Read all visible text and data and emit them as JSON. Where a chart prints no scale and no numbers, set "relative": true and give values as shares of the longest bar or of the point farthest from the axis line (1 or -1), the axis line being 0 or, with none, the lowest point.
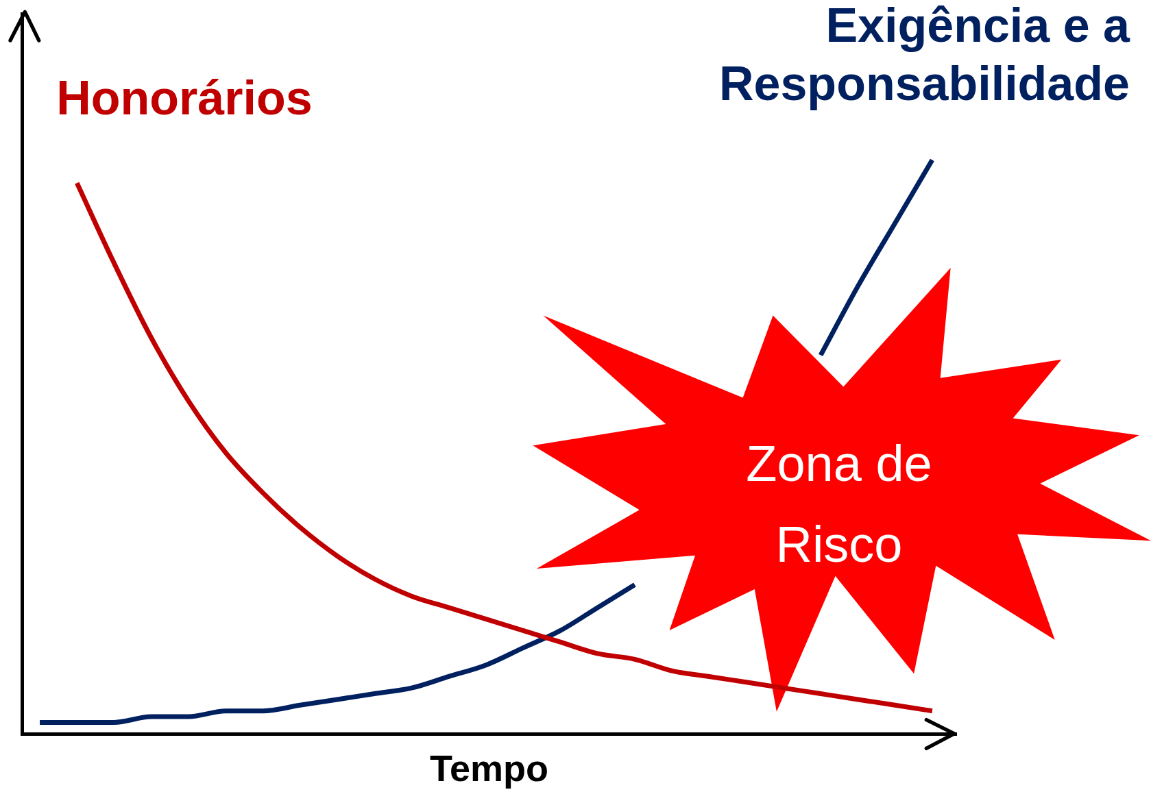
{
  "chart_data": {
    "type": "line",
    "relative": true,
    "legend": false,
    "marker": "none",
    "xlabel": "Tempo",
    "annotations": [
      "Zona de Risco"
    ],
    "categories": [
      null,
      null,
      null,
      null,
      null,
      null,
      null,
      null,
      null,
      null,
      null,
      null,
      null,
      null,
      null,
      null,
      null,
      null,
      null,
      null,
      null,
      null,
      null,
      null,
      null
    ],
    "series": [
      {
        "name": "Honorários",
        "color": "#c00000",
        "values": [
          null,
          0.96,
          0.82,
          0.69,
          0.58,
          0.49,
          0.42,
          0.36,
          0.31,
          0.27,
          0.24,
          0.22,
          0.2,
          0.18,
          0.16,
          0.14,
          0.13,
          0.11,
          0.1,
          0.09,
          0.08,
          0.07,
          0.06,
          0.05,
          0.04
        ]
      },
      {
        "name": "Exigência e a Responsabilidade",
        "color": "#002060",
        "values": [
          0.02,
          0.02,
          0.02,
          0.03,
          0.03,
          0.04,
          0.04,
          0.05,
          0.06,
          0.07,
          0.08,
          0.1,
          0.12,
          0.15,
          0.18,
          0.22,
          0.26,
          null,
          null,
          null,
          null,
          0.66,
          0.78,
          0.89,
          1
        ]
      }
    ]
  }
}
